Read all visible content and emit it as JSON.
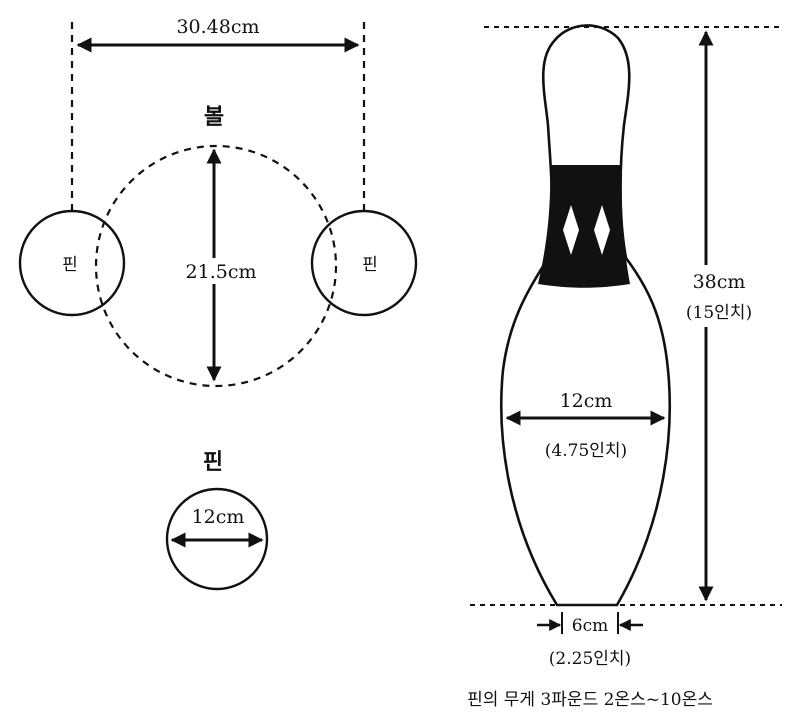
{
  "left": {
    "span_label": "30.48cm",
    "ball_label": "볼",
    "pin_left_label": "핀",
    "pin_right_label": "핀",
    "ball_diameter_label": "21.5cm",
    "pin_section_title": "핀",
    "pin_diameter_label": "12cm"
  },
  "right": {
    "height_label": "38cm",
    "height_inch_label": "(15인치)",
    "width_label": "12cm",
    "width_inch_label": "(4.75인치)",
    "base_label": "6cm",
    "base_inch_label": "(2.25인치)",
    "weight_caption": "핀의 무게 3파운드 2온스~10온스"
  },
  "colors": {
    "ink": "#111111",
    "background": "#ffffff"
  }
}
